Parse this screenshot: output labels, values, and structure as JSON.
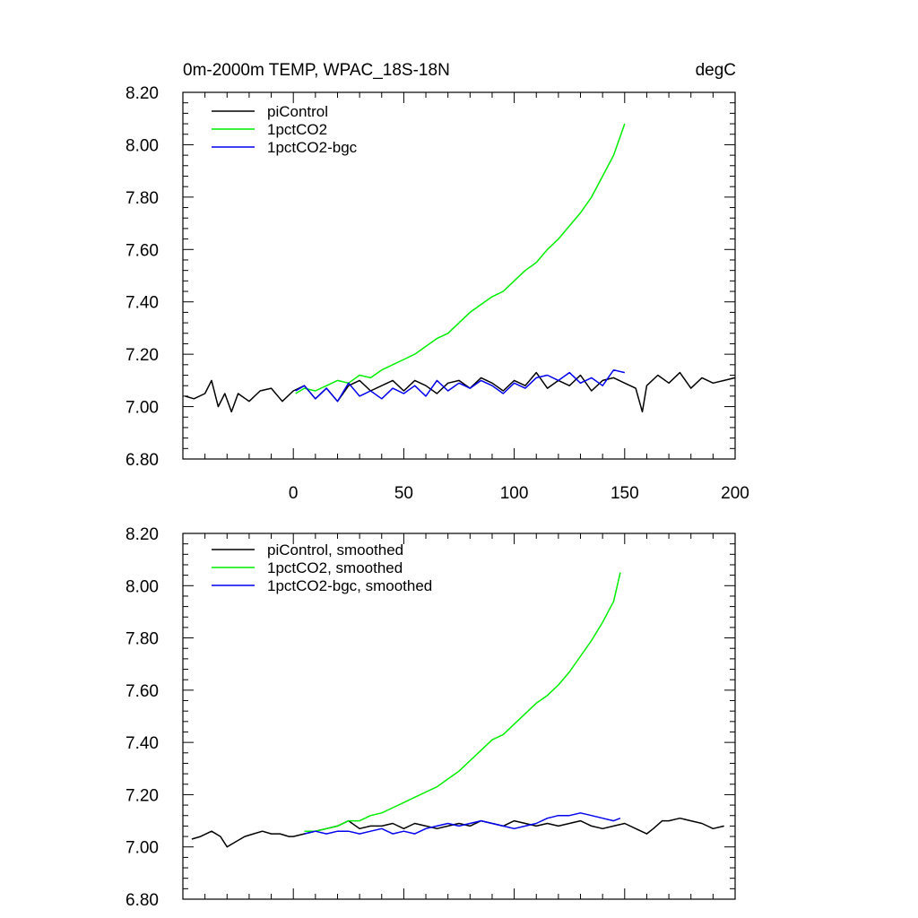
{
  "title_left": "0m-2000m TEMP, WPAC_18S-18N",
  "title_right": "degC",
  "colors": {
    "piControl": "#000000",
    "1pctCO2": "#00ee00",
    "1pctCO2-bgc": "#0000ee"
  },
  "chart_data": [
    {
      "type": "line",
      "panel": "top",
      "xlim": [
        -50,
        200
      ],
      "ylim": [
        6.8,
        8.2
      ],
      "x_ticks": [
        0,
        50,
        100,
        150,
        200
      ],
      "x_tick_labels": [
        "0",
        "50",
        "100",
        "150",
        "200"
      ],
      "y_ticks": [
        6.8,
        7.0,
        7.2,
        7.4,
        7.6,
        7.8,
        8.0,
        8.2
      ],
      "y_tick_labels": [
        "6.80",
        "7.00",
        "7.20",
        "7.40",
        "7.60",
        "7.80",
        "8.00",
        "8.20"
      ],
      "legend": [
        "piControl",
        "1pctCO2",
        "1pctCO2-bgc"
      ],
      "series": [
        {
          "name": "piControl",
          "color": "#000000",
          "x": [
            -49,
            -45,
            -40,
            -37,
            -34,
            -31,
            -28,
            -25,
            -20,
            -15,
            -10,
            -5,
            0,
            5,
            10,
            15,
            20,
            25,
            30,
            35,
            40,
            45,
            50,
            55,
            60,
            65,
            70,
            75,
            80,
            85,
            90,
            95,
            100,
            105,
            110,
            115,
            120,
            125,
            130,
            135,
            140,
            145,
            150,
            155,
            158,
            160,
            165,
            170,
            175,
            180,
            185,
            190,
            195,
            200
          ],
          "values": [
            7.04,
            7.03,
            7.05,
            7.1,
            7.0,
            7.05,
            6.98,
            7.05,
            7.02,
            7.06,
            7.07,
            7.02,
            7.06,
            7.08,
            7.03,
            7.07,
            7.02,
            7.08,
            7.1,
            7.06,
            7.08,
            7.1,
            7.06,
            7.1,
            7.08,
            7.05,
            7.09,
            7.1,
            7.07,
            7.11,
            7.09,
            7.06,
            7.1,
            7.08,
            7.13,
            7.07,
            7.1,
            7.08,
            7.12,
            7.06,
            7.1,
            7.11,
            7.09,
            7.07,
            6.98,
            7.08,
            7.12,
            7.09,
            7.13,
            7.07,
            7.11,
            7.09,
            7.1,
            7.11
          ]
        },
        {
          "name": "1pctCO2",
          "color": "#00ee00",
          "x": [
            1,
            5,
            10,
            15,
            20,
            25,
            30,
            35,
            40,
            45,
            50,
            55,
            60,
            65,
            70,
            75,
            80,
            85,
            90,
            95,
            100,
            105,
            110,
            115,
            120,
            125,
            130,
            135,
            140,
            145,
            150
          ],
          "values": [
            7.05,
            7.07,
            7.06,
            7.08,
            7.1,
            7.09,
            7.12,
            7.11,
            7.14,
            7.16,
            7.18,
            7.2,
            7.23,
            7.26,
            7.28,
            7.32,
            7.36,
            7.39,
            7.42,
            7.44,
            7.48,
            7.52,
            7.55,
            7.6,
            7.64,
            7.69,
            7.74,
            7.8,
            7.88,
            7.96,
            8.08
          ]
        },
        {
          "name": "1pctCO2-bgc",
          "color": "#0000ee",
          "x": [
            1,
            5,
            10,
            15,
            20,
            25,
            30,
            35,
            40,
            45,
            50,
            55,
            60,
            65,
            70,
            75,
            80,
            85,
            90,
            95,
            100,
            105,
            110,
            115,
            120,
            125,
            130,
            135,
            140,
            145,
            150
          ],
          "values": [
            7.06,
            7.08,
            7.03,
            7.07,
            7.02,
            7.09,
            7.04,
            7.06,
            7.03,
            7.07,
            7.05,
            7.08,
            7.04,
            7.1,
            7.06,
            7.09,
            7.07,
            7.1,
            7.08,
            7.05,
            7.09,
            7.07,
            7.11,
            7.12,
            7.1,
            7.13,
            7.09,
            7.11,
            7.08,
            7.14,
            7.13
          ]
        }
      ]
    },
    {
      "type": "line",
      "panel": "bottom",
      "xlim": [
        -50,
        200
      ],
      "ylim": [
        6.8,
        8.2
      ],
      "x_ticks": [
        0,
        50,
        100,
        150,
        200
      ],
      "y_ticks": [
        6.8,
        7.0,
        7.2,
        7.4,
        7.6,
        7.8,
        8.0,
        8.2
      ],
      "y_tick_labels": [
        "6.80",
        "7.00",
        "7.20",
        "7.40",
        "7.60",
        "7.80",
        "8.00",
        "8.20"
      ],
      "legend": [
        "piControl, smoothed",
        "1pctCO2, smoothed",
        "1pctCO2-bgc, smoothed"
      ],
      "series": [
        {
          "name": "piControl, smoothed",
          "color": "#000000",
          "x": [
            -46,
            -42,
            -37,
            -33,
            -30,
            -26,
            -22,
            -18,
            -14,
            -10,
            -6,
            -2,
            0,
            5,
            10,
            15,
            20,
            25,
            30,
            35,
            40,
            45,
            50,
            55,
            60,
            65,
            70,
            75,
            80,
            85,
            90,
            95,
            100,
            105,
            110,
            115,
            120,
            125,
            130,
            135,
            140,
            145,
            150,
            155,
            160,
            163,
            167,
            170,
            175,
            180,
            185,
            190,
            195
          ],
          "values": [
            7.03,
            7.04,
            7.06,
            7.04,
            7.0,
            7.02,
            7.04,
            7.05,
            7.06,
            7.05,
            7.05,
            7.04,
            7.04,
            7.05,
            7.06,
            7.07,
            7.08,
            7.1,
            7.07,
            7.08,
            7.08,
            7.09,
            7.07,
            7.09,
            7.08,
            7.07,
            7.08,
            7.09,
            7.08,
            7.1,
            7.09,
            7.08,
            7.1,
            7.09,
            7.08,
            7.09,
            7.08,
            7.09,
            7.1,
            7.08,
            7.07,
            7.08,
            7.09,
            7.07,
            7.05,
            7.07,
            7.1,
            7.1,
            7.11,
            7.1,
            7.09,
            7.07,
            7.08
          ]
        },
        {
          "name": "1pctCO2, smoothed",
          "color": "#00ee00",
          "x": [
            5,
            10,
            15,
            20,
            25,
            30,
            35,
            40,
            45,
            50,
            55,
            60,
            65,
            70,
            75,
            80,
            85,
            90,
            95,
            100,
            105,
            110,
            115,
            120,
            125,
            130,
            135,
            140,
            145,
            148
          ],
          "values": [
            7.06,
            7.06,
            7.07,
            7.08,
            7.1,
            7.1,
            7.12,
            7.13,
            7.15,
            7.17,
            7.19,
            7.21,
            7.23,
            7.26,
            7.29,
            7.33,
            7.37,
            7.41,
            7.43,
            7.47,
            7.51,
            7.55,
            7.58,
            7.62,
            7.67,
            7.73,
            7.79,
            7.86,
            7.94,
            8.05
          ]
        },
        {
          "name": "1pctCO2-bgc, smoothed",
          "color": "#0000ee",
          "x": [
            5,
            10,
            15,
            20,
            25,
            30,
            35,
            40,
            45,
            50,
            55,
            60,
            65,
            70,
            75,
            80,
            85,
            90,
            95,
            100,
            105,
            110,
            115,
            120,
            125,
            130,
            135,
            140,
            145,
            148
          ],
          "values": [
            7.05,
            7.06,
            7.05,
            7.06,
            7.06,
            7.05,
            7.06,
            7.07,
            7.05,
            7.06,
            7.05,
            7.07,
            7.08,
            7.09,
            7.08,
            7.09,
            7.1,
            7.09,
            7.08,
            7.07,
            7.08,
            7.09,
            7.11,
            7.12,
            7.12,
            7.13,
            7.12,
            7.11,
            7.1,
            7.11
          ]
        }
      ]
    }
  ]
}
